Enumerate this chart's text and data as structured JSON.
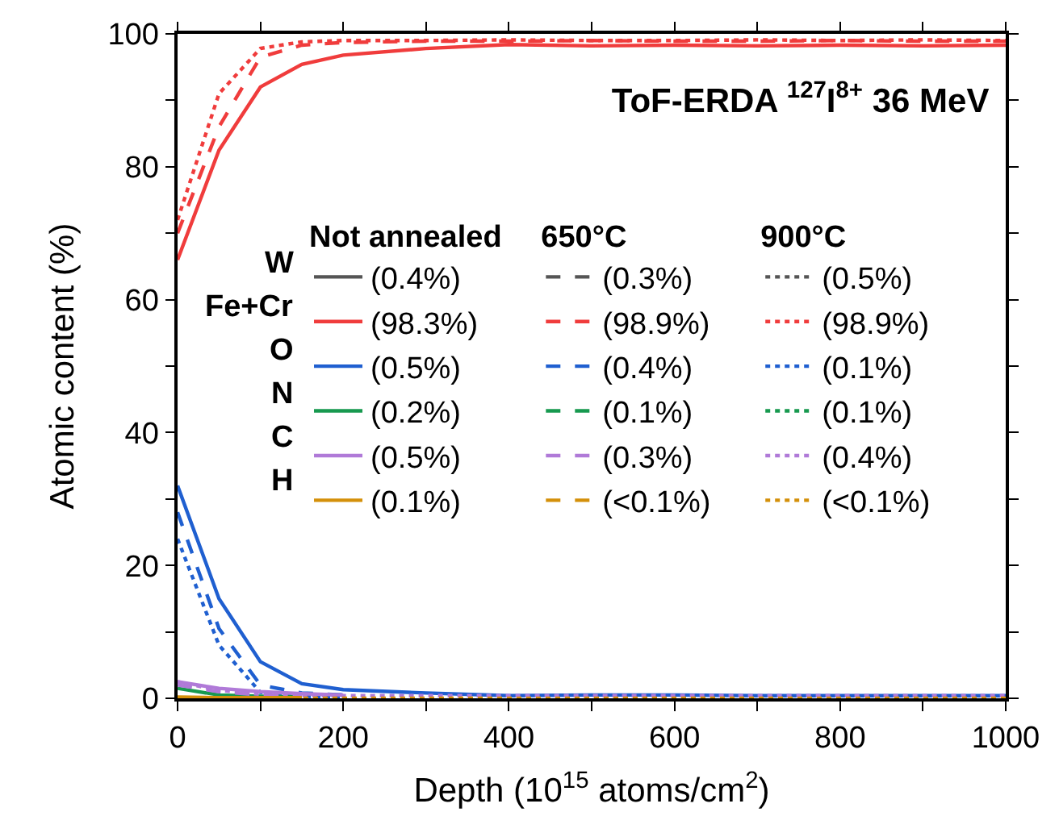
{
  "chart_data": {
    "type": "line",
    "title": "ToF-ERDA $^{127}$I$^{8+}$ 36 MeV",
    "xlabel": "Depth (10$^{15}$ atoms/cm$^{2}$)",
    "ylabel": "Atomic content (%)",
    "annotations": [
      "Not annealed",
      "650°C",
      "900°C",
      "W",
      "Fe+Cr",
      "O",
      "N",
      "C",
      "H"
    ],
    "x": [
      0,
      50,
      100,
      150,
      200,
      300,
      400,
      500,
      600,
      700,
      800,
      900,
      1000
    ],
    "xlim": [
      0,
      1000
    ],
    "xticks": [
      0,
      {
        "value": 100,
        "label": null
      },
      200,
      {
        "value": 300,
        "label": null
      },
      400,
      {
        "value": 500,
        "label": null
      },
      600,
      {
        "value": 700,
        "label": null
      },
      800,
      {
        "value": 900,
        "label": null
      },
      1000
    ],
    "ylim": [
      0,
      100
    ],
    "yticks": [
      0,
      {
        "value": 10,
        "label": null
      },
      20,
      {
        "value": 30,
        "label": null
      },
      40,
      {
        "value": 50,
        "label": null
      },
      60,
      {
        "value": 70,
        "label": null
      },
      80,
      {
        "value": 90,
        "label": null
      },
      100
    ],
    "legend": "center",
    "series": [
      {
        "name": "(0.4%)",
        "color": "#555555",
        "line_style": "solid",
        "values": [
          null,
          null,
          null,
          null,
          null,
          null,
          null,
          null,
          null,
          null,
          null,
          null,
          null
        ]
      },
      {
        "name": "(0.3%)",
        "color": "#555555",
        "line_style": "dashed",
        "values": [
          null,
          null,
          null,
          null,
          null,
          null,
          null,
          null,
          null,
          null,
          null,
          null,
          null
        ]
      },
      {
        "name": "(0.5%)",
        "color": "#555555",
        "line_style": "dotted",
        "values": [
          null,
          null,
          null,
          null,
          null,
          null,
          null,
          null,
          null,
          null,
          null,
          null,
          null
        ]
      },
      {
        "name": "(98.3%)",
        "color": "#f03c3c",
        "line_style": "solid",
        "values": [
          66,
          82.5,
          92,
          95.4,
          96.8,
          97.8,
          98.4,
          98.2,
          98.3,
          98.2,
          98.3,
          98.2,
          98.3
        ]
      },
      {
        "name": "(98.9%)",
        "color": "#f03c3c",
        "line_style": "dashed",
        "values": [
          70,
          86,
          96.5,
          98.3,
          98.7,
          98.9,
          98.9,
          99,
          98.9,
          98.9,
          99,
          98.9,
          98.9
        ]
      },
      {
        "name": "(98.9%)",
        "color": "#f03c3c",
        "line_style": "dotted",
        "values": [
          72,
          91,
          97.8,
          98.8,
          99,
          99,
          99.1,
          99,
          99,
          99.1,
          99,
          99.1,
          99
        ]
      },
      {
        "name": "(0.5%)",
        "color": "#1f5fd0",
        "line_style": "solid",
        "values": [
          32,
          15,
          5.5,
          2.2,
          1.3,
          0.8,
          0.4,
          0.5,
          0.5,
          0.4,
          0.4,
          0.4,
          0.4
        ]
      },
      {
        "name": "(0.4%)",
        "color": "#1f5fd0",
        "line_style": "dashed",
        "values": [
          28,
          10.5,
          2,
          0.8,
          0.5,
          null,
          null,
          null,
          null,
          null,
          null,
          null,
          null
        ]
      },
      {
        "name": "(0.1%)",
        "color": "#1f5fd0",
        "line_style": "dotted",
        "values": [
          24,
          8,
          0.9,
          0.3,
          0.2,
          null,
          null,
          null,
          null,
          null,
          null,
          null,
          null
        ]
      },
      {
        "name": "(0.2%)",
        "color": "#17994f",
        "line_style": "solid",
        "values": [
          1.5,
          0.5,
          0.3,
          0.2,
          null,
          null,
          null,
          null,
          null,
          null,
          null,
          null,
          null
        ]
      },
      {
        "name": "(0.1%)",
        "color": "#17994f",
        "line_style": "dashed",
        "values": [
          null,
          null,
          null,
          null,
          null,
          null,
          null,
          null,
          null,
          null,
          null,
          null,
          null
        ]
      },
      {
        "name": "(0.1%)",
        "color": "#17994f",
        "line_style": "dotted",
        "values": [
          null,
          null,
          null,
          null,
          null,
          null,
          null,
          null,
          null,
          null,
          null,
          null,
          null
        ]
      },
      {
        "name": "(0.5%)",
        "color": "#b07ad8",
        "line_style": "solid",
        "values": [
          2.5,
          1.5,
          1,
          0.7,
          0.5,
          null,
          null,
          null,
          null,
          null,
          null,
          null,
          null
        ]
      },
      {
        "name": "(0.3%)",
        "color": "#b07ad8",
        "line_style": "dashed",
        "values": [
          2,
          1,
          0.5,
          0.3,
          null,
          null,
          null,
          null,
          null,
          null,
          null,
          null,
          null
        ]
      },
      {
        "name": "(0.4%)",
        "color": "#b07ad8",
        "line_style": "dotted",
        "values": [
          2.5,
          1.2,
          0.6,
          0.4,
          0.4,
          0.4,
          0.4,
          0.4,
          0.4,
          0.4,
          0.4,
          0.4,
          0.4
        ]
      },
      {
        "name": "(0.1%)",
        "color": "#d4900a",
        "line_style": "solid",
        "values": [
          0.2,
          0.1,
          0.1,
          0.1,
          null,
          null,
          null,
          null,
          null,
          null,
          null,
          null,
          null
        ]
      },
      {
        "name": "(<0.1%)",
        "color": "#d4900a",
        "line_style": "dashed",
        "values": [
          null,
          null,
          null,
          null,
          null,
          null,
          null,
          null,
          null,
          null,
          null,
          null,
          null
        ]
      },
      {
        "name": "(<0.1%)",
        "color": "#d4900a",
        "line_style": "dotted",
        "values": [
          0.1,
          0,
          0,
          0,
          0,
          0,
          0,
          0,
          0,
          0,
          0,
          0,
          0
        ]
      }
    ]
  }
}
